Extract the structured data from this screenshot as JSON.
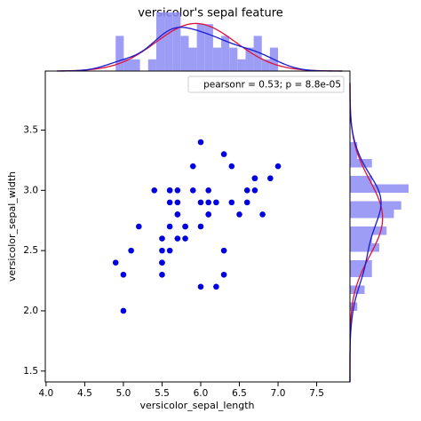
{
  "chart_data": {
    "type": "scatter",
    "title": "versicolor's sepal feature",
    "x_label": "versicolor_sepal_length",
    "y_label": "versicolor_sepal_width",
    "annotation": "pearsonr = 0.53; p = 8.8e-05",
    "color": "#0000e0",
    "hist_color": "#8c8cf4",
    "kde_color": "#1a1ad0",
    "fit_color": "#e0103a",
    "x": [
      7.0,
      6.4,
      6.9,
      5.5,
      6.5,
      5.7,
      6.3,
      4.9,
      6.6,
      5.2,
      5.0,
      5.9,
      6.0,
      6.1,
      5.6,
      6.7,
      5.6,
      5.8,
      6.2,
      5.6,
      5.9,
      6.1,
      6.3,
      6.1,
      6.4,
      6.6,
      6.8,
      6.7,
      6.0,
      5.7,
      5.5,
      5.5,
      5.8,
      6.0,
      5.4,
      6.0,
      6.7,
      6.3,
      5.6,
      5.5,
      5.5,
      6.1,
      5.8,
      5.0,
      5.6,
      5.7,
      5.7,
      6.2,
      5.1,
      5.7
    ],
    "values": [
      3.2,
      3.2,
      3.1,
      2.3,
      2.8,
      2.8,
      3.3,
      2.4,
      2.9,
      2.7,
      2.0,
      3.0,
      2.2,
      2.9,
      2.9,
      3.1,
      3.0,
      2.7,
      2.2,
      2.5,
      3.2,
      2.8,
      2.5,
      2.8,
      2.9,
      3.0,
      2.8,
      3.0,
      2.9,
      2.6,
      2.4,
      2.4,
      2.7,
      2.7,
      3.0,
      3.4,
      3.1,
      2.3,
      3.0,
      2.5,
      2.6,
      3.0,
      2.6,
      2.3,
      2.7,
      3.0,
      2.9,
      2.9,
      2.5,
      2.8
    ],
    "xlim": [
      3.99,
      7.93
    ],
    "xticks": [
      {
        "value": 4,
        "label": "4.0"
      },
      4.5,
      {
        "value": 5,
        "label": "5.0"
      },
      5.5,
      {
        "value": 6,
        "label": "6.0"
      },
      6.5,
      {
        "value": 7,
        "label": "7.0"
      },
      7.5
    ],
    "ylim": [
      1.41,
      3.99
    ],
    "yticks": [
      1.5,
      {
        "value": 2,
        "label": "2.0"
      },
      2.5,
      {
        "value": 3,
        "label": "3.0"
      },
      3.5
    ],
    "marginal_x": {
      "bins": [
        4.9,
        5.005,
        5.11,
        5.215,
        5.32,
        5.425,
        5.53,
        5.635,
        5.74,
        5.845,
        5.95,
        6.055,
        6.16,
        6.265,
        6.37,
        6.475,
        6.58,
        6.685,
        6.79,
        6.895,
        7.0
      ],
      "counts": [
        3,
        1,
        1,
        0,
        1,
        5,
        5,
        5,
        3,
        2,
        4,
        4,
        2,
        3,
        2,
        1,
        2,
        3,
        1,
        2
      ]
    },
    "marginal_y": {
      "bins": [
        2.0,
        2.07,
        2.14,
        2.21,
        2.28,
        2.35,
        2.42,
        2.49,
        2.56,
        2.63,
        2.7,
        2.77,
        2.84,
        2.91,
        2.98,
        3.05,
        3.12,
        3.19,
        3.26,
        3.33,
        3.4
      ],
      "counts": [
        1,
        0,
        2,
        0,
        3,
        3,
        0,
        4,
        3,
        5,
        0,
        6,
        7,
        0,
        8,
        3,
        0,
        3,
        1,
        1
      ]
    }
  }
}
